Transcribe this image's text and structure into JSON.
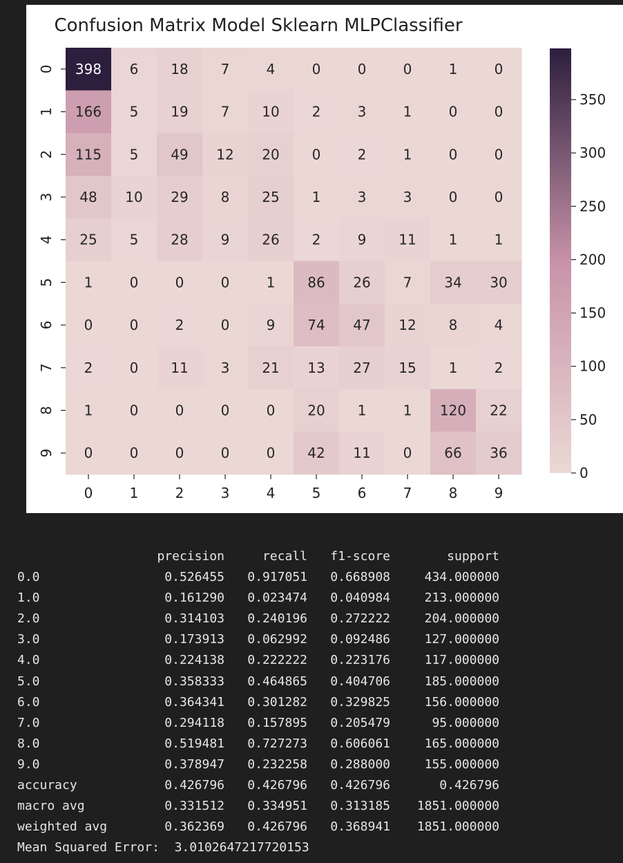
{
  "chart_data": {
    "type": "heatmap",
    "title": "Confusion Matrix Model Sklearn MLPClassifier",
    "x_tick_labels": [
      "0",
      "1",
      "2",
      "3",
      "4",
      "5",
      "6",
      "7",
      "8",
      "9"
    ],
    "y_tick_labels": [
      "0",
      "1",
      "2",
      "3",
      "4",
      "5",
      "6",
      "7",
      "8",
      "9"
    ],
    "values": [
      [
        398,
        6,
        18,
        7,
        4,
        0,
        0,
        0,
        1,
        0
      ],
      [
        166,
        5,
        19,
        7,
        10,
        2,
        3,
        1,
        0,
        0
      ],
      [
        115,
        5,
        49,
        12,
        20,
        0,
        2,
        1,
        0,
        0
      ],
      [
        48,
        10,
        29,
        8,
        25,
        1,
        3,
        3,
        0,
        0
      ],
      [
        25,
        5,
        28,
        9,
        26,
        2,
        9,
        11,
        1,
        1
      ],
      [
        1,
        0,
        0,
        0,
        1,
        86,
        26,
        7,
        34,
        30
      ],
      [
        0,
        0,
        2,
        0,
        9,
        74,
        47,
        12,
        8,
        4
      ],
      [
        2,
        0,
        11,
        3,
        21,
        13,
        27,
        15,
        1,
        2
      ],
      [
        1,
        0,
        0,
        0,
        0,
        20,
        1,
        1,
        120,
        22
      ],
      [
        0,
        0,
        0,
        0,
        0,
        42,
        11,
        0,
        66,
        36
      ]
    ],
    "colorbar": {
      "range": [
        0,
        398
      ],
      "ticks": [
        0,
        50,
        100,
        150,
        200,
        250,
        300,
        350
      ],
      "colors": {
        "low": "#ebd8d5",
        "mid": "#c792a8",
        "high": "#2c1e3d"
      }
    },
    "grid": false
  },
  "report": {
    "headers": [
      "precision",
      "recall",
      "f1-score",
      "support"
    ],
    "rows": [
      {
        "label": "0.0",
        "precision": "0.526455",
        "recall": "0.917051",
        "f1": "0.668908",
        "support": "434.000000"
      },
      {
        "label": "1.0",
        "precision": "0.161290",
        "recall": "0.023474",
        "f1": "0.040984",
        "support": "213.000000"
      },
      {
        "label": "2.0",
        "precision": "0.314103",
        "recall": "0.240196",
        "f1": "0.272222",
        "support": "204.000000"
      },
      {
        "label": "3.0",
        "precision": "0.173913",
        "recall": "0.062992",
        "f1": "0.092486",
        "support": "127.000000"
      },
      {
        "label": "4.0",
        "precision": "0.224138",
        "recall": "0.222222",
        "f1": "0.223176",
        "support": "117.000000"
      },
      {
        "label": "5.0",
        "precision": "0.358333",
        "recall": "0.464865",
        "f1": "0.404706",
        "support": "185.000000"
      },
      {
        "label": "6.0",
        "precision": "0.364341",
        "recall": "0.301282",
        "f1": "0.329825",
        "support": "156.000000"
      },
      {
        "label": "7.0",
        "precision": "0.294118",
        "recall": "0.157895",
        "f1": "0.205479",
        "support": "95.000000"
      },
      {
        "label": "8.0",
        "precision": "0.519481",
        "recall": "0.727273",
        "f1": "0.606061",
        "support": "165.000000"
      },
      {
        "label": "9.0",
        "precision": "0.378947",
        "recall": "0.232258",
        "f1": "0.288000",
        "support": "155.000000"
      },
      {
        "label": "accuracy",
        "precision": "0.426796",
        "recall": "0.426796",
        "f1": "0.426796",
        "support": "0.426796"
      },
      {
        "label": "macro avg",
        "precision": "0.331512",
        "recall": "0.334951",
        "f1": "0.313185",
        "support": "1851.000000"
      },
      {
        "label": "weighted avg",
        "precision": "0.362369",
        "recall": "0.426796",
        "f1": "0.368941",
        "support": "1851.000000"
      }
    ],
    "mse_label": "Mean Squared Error:",
    "mse_value": "3.0102647217720153"
  }
}
